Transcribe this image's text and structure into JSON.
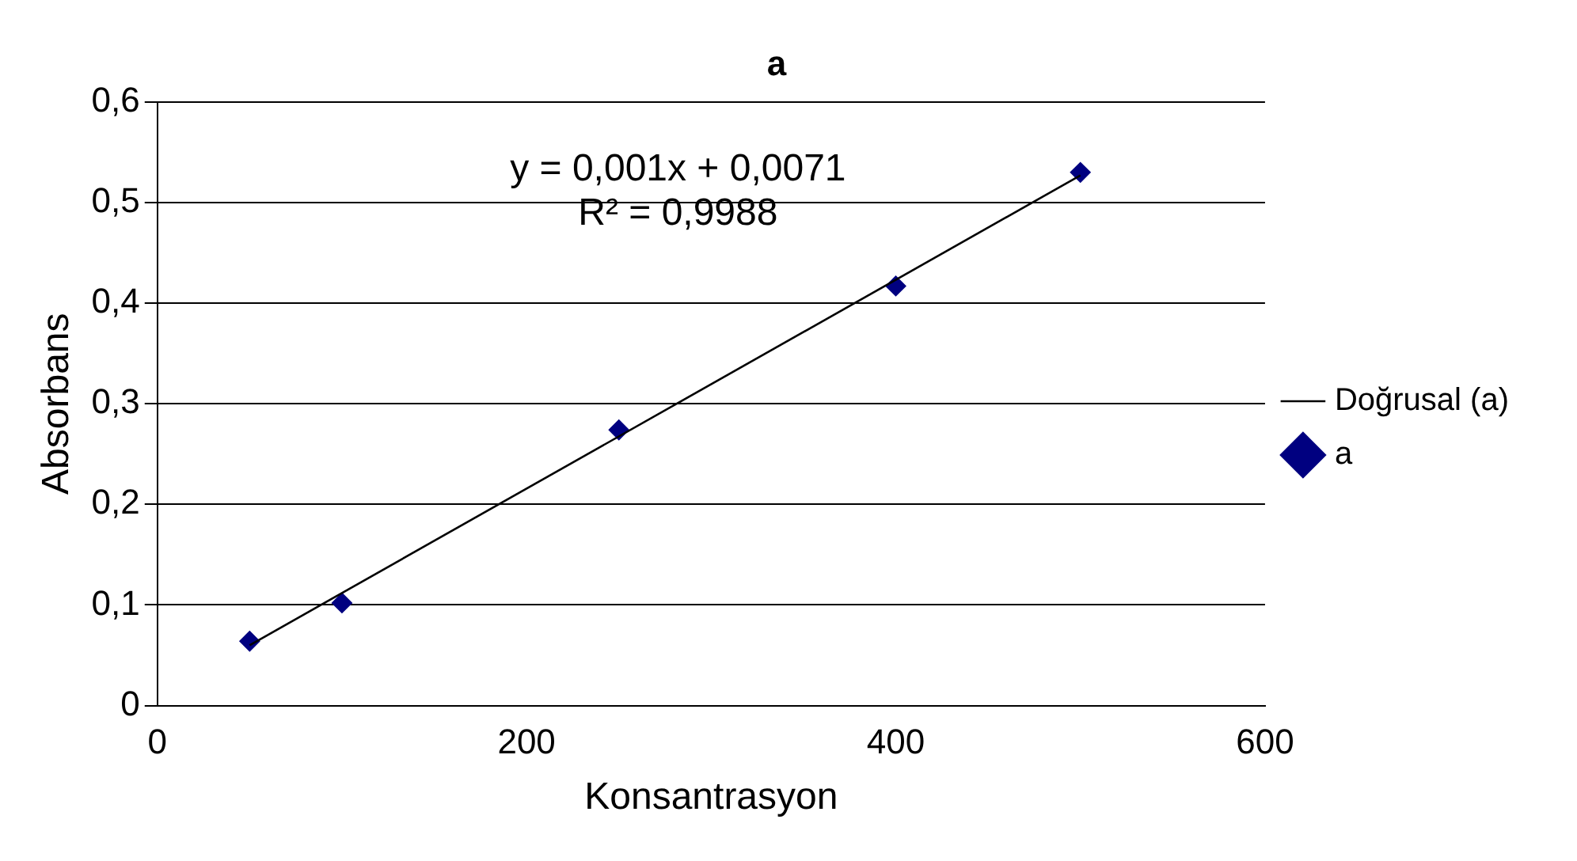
{
  "chart_data": {
    "type": "scatter",
    "title": "a",
    "xlabel": "Konsantrasyon",
    "ylabel": "Absorbans",
    "xlim": [
      0,
      600
    ],
    "xticks": [
      0,
      200,
      400,
      600
    ],
    "ylim": [
      0,
      0.6
    ],
    "yticks": [
      {
        "value": 0,
        "label": "0"
      },
      {
        "value": 0.1,
        "label": "0,1"
      },
      {
        "value": 0.2,
        "label": "0,2"
      },
      {
        "value": 0.3,
        "label": "0,3"
      },
      {
        "value": 0.4,
        "label": "0,4"
      },
      {
        "value": 0.5,
        "label": "0,5"
      },
      {
        "value": 0.6,
        "label": "0,6"
      }
    ],
    "grid": "y",
    "legend": "right",
    "marker": "diamond",
    "series": [
      {
        "name": "a",
        "color": "#000080",
        "x": [
          50,
          100,
          250,
          400,
          500
        ],
        "values": [
          0.064,
          0.102,
          0.274,
          0.417,
          0.53
        ]
      },
      {
        "name": "Doğrusal (a)",
        "type": "line",
        "marker": "none",
        "color": "#000000",
        "x": [
          50,
          500
        ],
        "values": [
          0.06,
          0.527
        ]
      }
    ],
    "annotations": [
      "y = 0,001x + 0,0071",
      "R² = 0,9988"
    ]
  }
}
